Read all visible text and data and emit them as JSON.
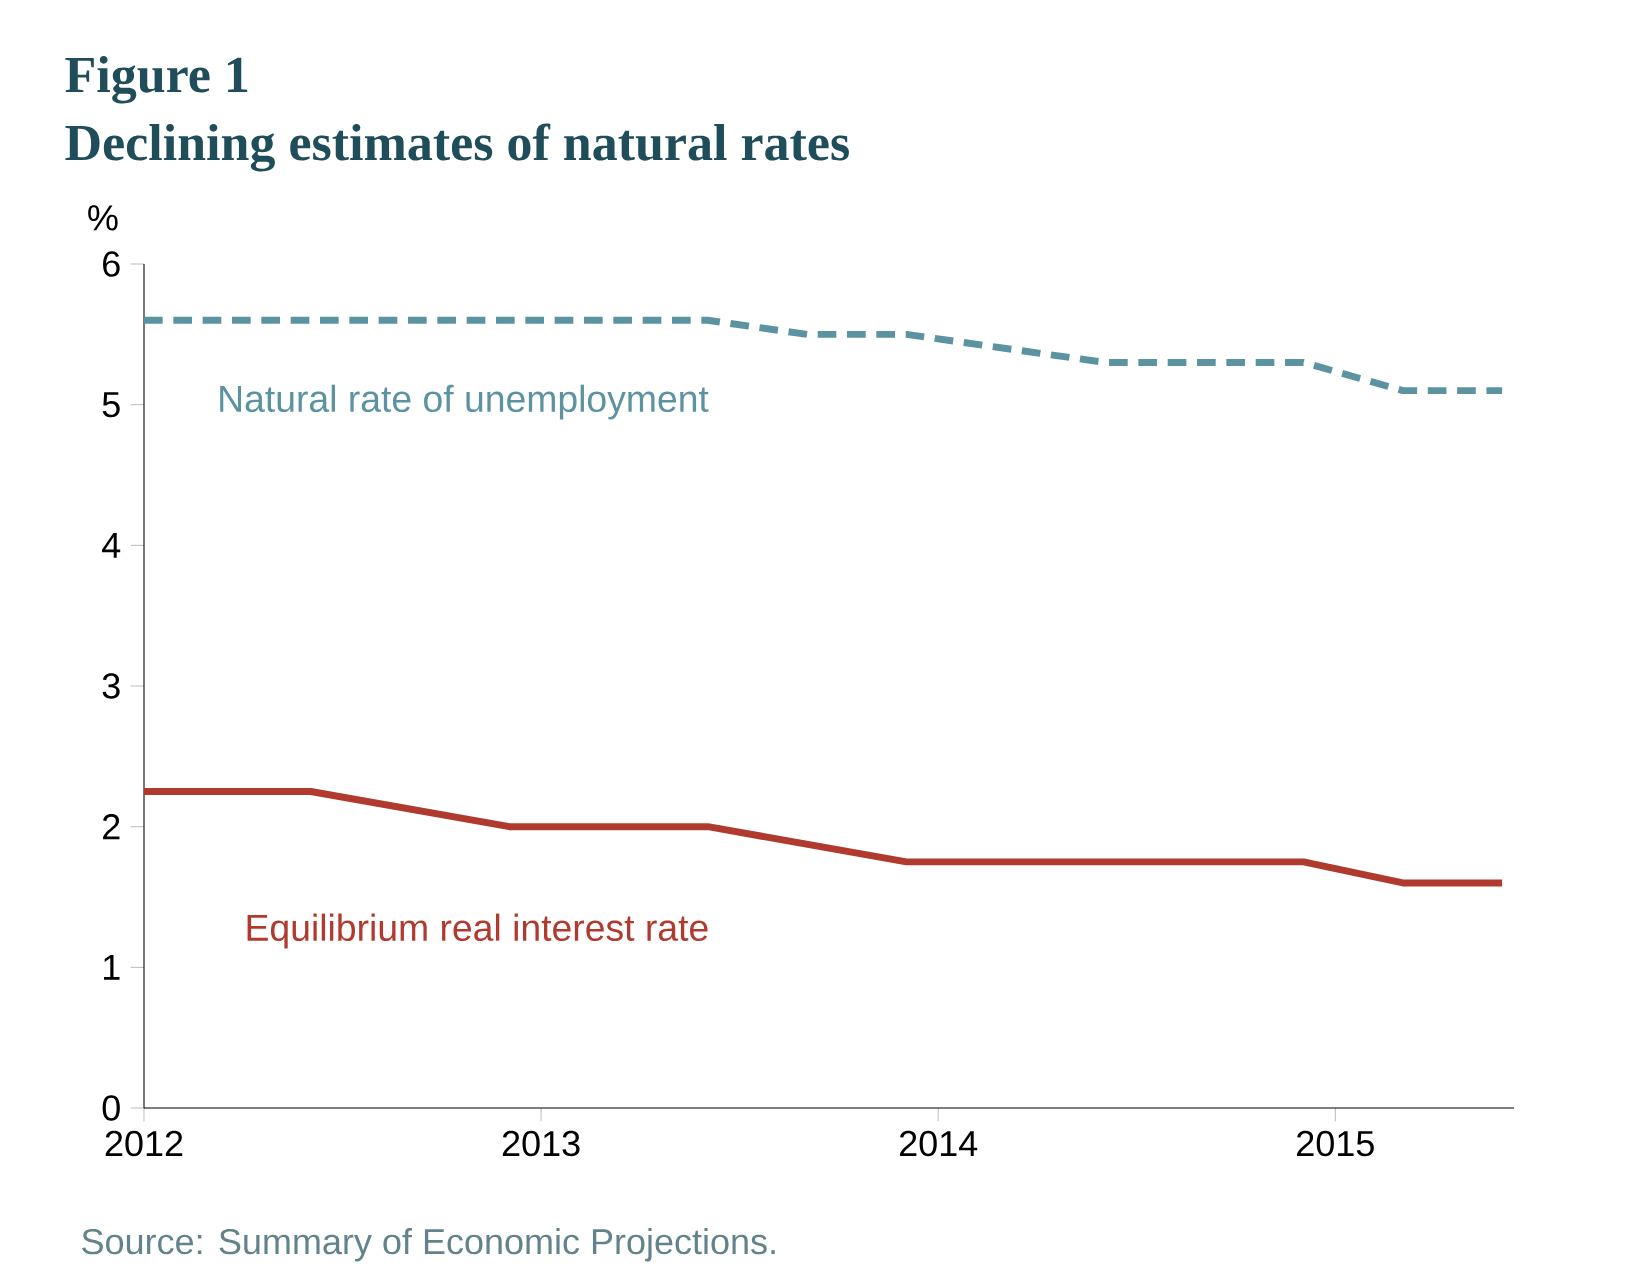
{
  "chart_data": {
    "type": "line",
    "title": "Figure 1",
    "subtitle": "Declining estimates of natural rates",
    "ylabel": "%",
    "series": [
      {
        "name": "Natural rate of unemployment",
        "color": "#5b93a0",
        "line_style": "dashed",
        "x": [
          2012,
          2013.42,
          2013.67,
          2013.92,
          2014.42,
          2014.92,
          2015.17,
          2015.42
        ],
        "values": [
          5.6,
          5.6,
          5.5,
          5.5,
          5.3,
          5.3,
          5.1,
          5.1
        ]
      },
      {
        "name": "Equilibrium real interest rate",
        "color": "#b03a2e",
        "line_style": "solid",
        "x": [
          2012,
          2012.42,
          2012.92,
          2013.42,
          2013.92,
          2014.92,
          2015.17,
          2015.42
        ],
        "values": [
          2.25,
          2.25,
          2.0,
          2.0,
          1.75,
          1.75,
          1.6,
          1.6
        ]
      }
    ],
    "xlim": [
      2012,
      2015.45
    ],
    "xticks": [
      2012,
      2013,
      2014,
      2015
    ],
    "ylim": [
      0,
      6
    ],
    "yticks": [
      0,
      1,
      2,
      3,
      4,
      5,
      6
    ],
    "grid": false,
    "marker": "none",
    "annotations": [
      "Source:  Summary of Economic Projections."
    ]
  }
}
